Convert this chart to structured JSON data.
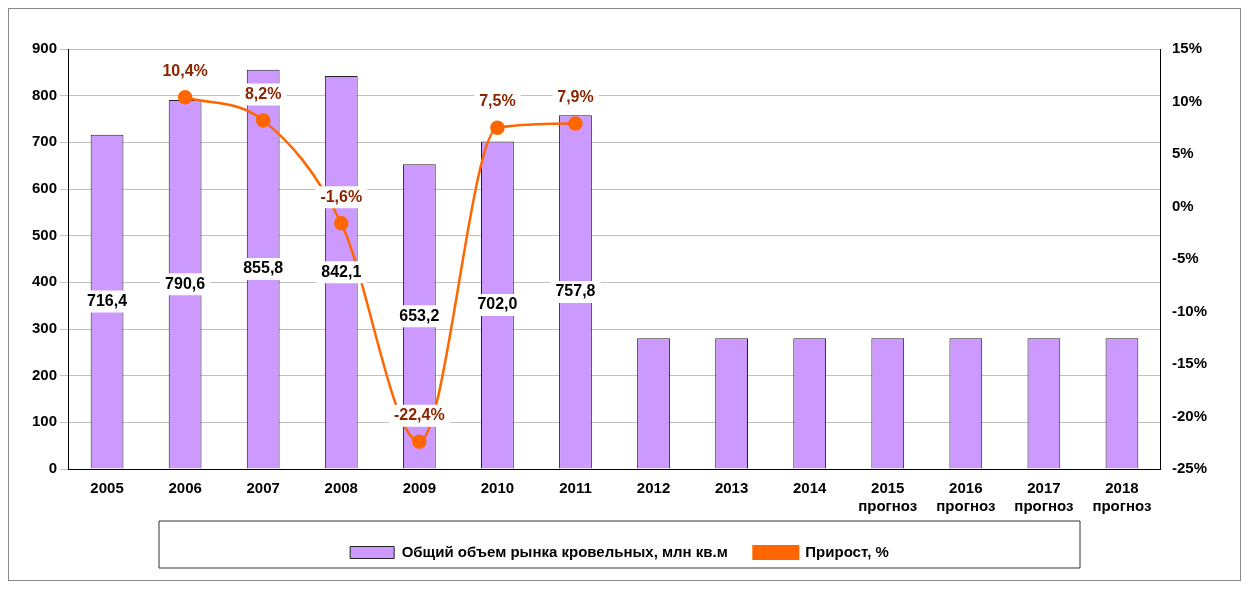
{
  "chart_data": {
    "type": "bar",
    "categories": [
      "2005",
      "2006",
      "2007",
      "2008",
      "2009",
      "2010",
      "2011",
      "2012",
      "2013",
      "2014",
      "2015\nпрогноз",
      "2016\nпрогноз",
      "2017\nпрогноз",
      "2018\nпрогноз"
    ],
    "series": [
      {
        "name": "Общий объем рынка кровельных, млн кв.м",
        "color": "#cc99ff",
        "values": [
          716.4,
          790.6,
          855.8,
          842.1,
          653.2,
          702.0,
          757.8,
          280,
          280,
          280,
          280,
          280,
          280,
          280
        ],
        "value_labels": [
          "716,4",
          "790,6",
          "855,8",
          "842,1",
          "653,2",
          "702,0",
          "757,8",
          null,
          null,
          null,
          null,
          null,
          null,
          null
        ]
      },
      {
        "name": "Прирост, %",
        "type": "line",
        "axis": "y2",
        "color": "#ff6600",
        "marker": "circle",
        "values": [
          null,
          10.4,
          8.2,
          -1.6,
          -22.4,
          7.5,
          7.9,
          null,
          null,
          null,
          null,
          null,
          null,
          null
        ],
        "value_labels": [
          null,
          "10,4%",
          "8,2%",
          "-1,6%",
          "-22,4%",
          "7,5%",
          "7,9%",
          null,
          null,
          null,
          null,
          null,
          null,
          null
        ]
      }
    ],
    "ylim": [
      0,
      900
    ],
    "yticks": [
      0,
      100,
      200,
      300,
      400,
      500,
      600,
      700,
      800,
      900
    ],
    "y2lim": [
      -25,
      15
    ],
    "y2ticks": [
      {
        "value": -25,
        "label": "-25%"
      },
      {
        "value": -20,
        "label": "-20%"
      },
      {
        "value": -15,
        "label": "-15%"
      },
      {
        "value": -10,
        "label": "-10%"
      },
      {
        "value": -5,
        "label": "-5%"
      },
      {
        "value": 0,
        "label": "0%"
      },
      {
        "value": 5,
        "label": "5%"
      },
      {
        "value": 10,
        "label": "10%"
      },
      {
        "value": 15,
        "label": "15%"
      }
    ],
    "grid": "y",
    "legend": "bottom"
  }
}
